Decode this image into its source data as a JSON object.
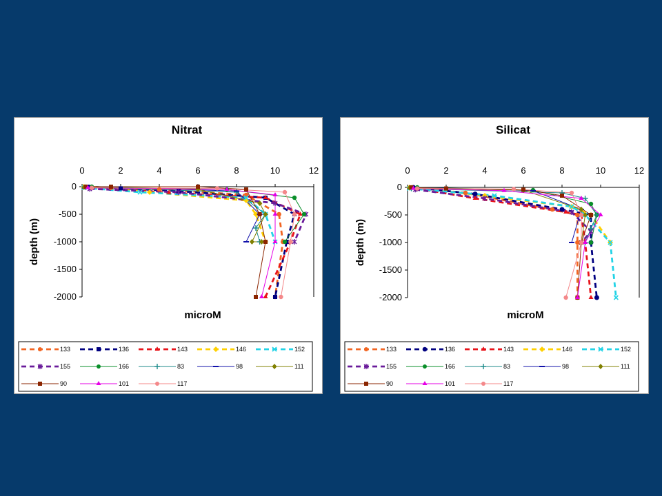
{
  "chart_data": [
    {
      "type": "line",
      "title": "Nitrat",
      "xlabel": "microM",
      "ylabel": "depth (m)",
      "xlim": [
        0,
        12
      ],
      "ylim": [
        -2000,
        0
      ],
      "x_ticks": [
        "0",
        "2",
        "4",
        "6",
        "8",
        "10",
        "12"
      ],
      "y_ticks": [
        "0",
        "-500",
        "-1000",
        "-1500",
        "-2000"
      ],
      "legend_position": "bottom",
      "series": [
        {
          "name": "133",
          "color": "#F26522",
          "dash": "dashed",
          "marker": "circle",
          "points": [
            [
              0.2,
              0
            ],
            [
              1.5,
              -20
            ],
            [
              4,
              -50
            ],
            [
              8.5,
              -150
            ],
            [
              10.2,
              -500
            ],
            [
              10.4,
              -1000
            ],
            [
              10.0,
              -2000
            ]
          ]
        },
        {
          "name": "136",
          "color": "#000080",
          "dash": "dashed",
          "marker": "square",
          "points": [
            [
              0.3,
              0
            ],
            [
              2,
              -30
            ],
            [
              5,
              -80
            ],
            [
              9.5,
              -200
            ],
            [
              11,
              -500
            ],
            [
              10.6,
              -1000
            ],
            [
              10.0,
              -2000
            ]
          ]
        },
        {
          "name": "143",
          "color": "#E8131A",
          "dash": "dashed",
          "marker": "triangle",
          "points": [
            [
              0.5,
              -10
            ],
            [
              4.5,
              -110
            ],
            [
              9.5,
              -200
            ],
            [
              11.3,
              -500
            ],
            [
              10.8,
              -1000
            ],
            [
              9.5,
              -2000
            ]
          ]
        },
        {
          "name": "146",
          "color": "#FFD000",
          "dash": "dashed",
          "marker": "diamond",
          "points": [
            [
              0.1,
              0
            ],
            [
              3.5,
              -100
            ],
            [
              8.5,
              -250
            ],
            [
              9.0,
              -500
            ],
            [
              9.5,
              -1000
            ]
          ]
        },
        {
          "name": "152",
          "color": "#22D3E6",
          "dash": "dashed",
          "marker": "x",
          "points": [
            [
              0.1,
              -20
            ],
            [
              3,
              -100
            ],
            [
              8.5,
              -200
            ],
            [
              9.5,
              -500
            ],
            [
              10,
              -1000
            ]
          ]
        },
        {
          "name": "155",
          "color": "#6A1B9A",
          "dash": "dashed",
          "marker": "star",
          "points": [
            [
              0.4,
              -40
            ],
            [
              5,
              -100
            ],
            [
              10,
              -300
            ],
            [
              11.6,
              -500
            ],
            [
              11,
              -1000
            ]
          ]
        },
        {
          "name": "166",
          "color": "#0A8F2A",
          "dash": "solid",
          "marker": "circle",
          "points": [
            [
              0.5,
              0
            ],
            [
              7.5,
              -50
            ],
            [
              11.0,
              -200
            ],
            [
              11.5,
              -500
            ],
            [
              10.5,
              -1000
            ]
          ]
        },
        {
          "name": "83",
          "color": "#1B8A8A",
          "dash": "solid",
          "marker": "plus",
          "points": [
            [
              0.2,
              -10
            ],
            [
              8,
              -100
            ],
            [
              9.5,
              -500
            ],
            [
              9.0,
              -750
            ],
            [
              9.2,
              -1000
            ]
          ]
        },
        {
          "name": "98",
          "color": "#1111AA",
          "dash": "solid",
          "marker": "dash",
          "points": [
            [
              0.3,
              0
            ],
            [
              8,
              -80
            ],
            [
              9.2,
              -500
            ],
            [
              8.5,
              -1000
            ]
          ]
        },
        {
          "name": "111",
          "color": "#808000",
          "dash": "solid",
          "marker": "diamond",
          "points": [
            [
              0.1,
              -10
            ],
            [
              6,
              -50
            ],
            [
              9.2,
              -300
            ],
            [
              9.5,
              -500
            ],
            [
              8.8,
              -1000
            ],
            [
              9.3,
              -1000
            ]
          ]
        },
        {
          "name": "90",
          "color": "#8B2500",
          "dash": "solid",
          "marker": "square",
          "points": [
            [
              0.2,
              0
            ],
            [
              1.5,
              0
            ],
            [
              6,
              0
            ],
            [
              8.5,
              -50
            ],
            [
              9.2,
              -500
            ],
            [
              9.5,
              -1000
            ],
            [
              9.0,
              -2000
            ]
          ]
        },
        {
          "name": "101",
          "color": "#E600E6",
          "dash": "solid",
          "marker": "triangle",
          "points": [
            [
              0.3,
              -20
            ],
            [
              7.5,
              -50
            ],
            [
              10.0,
              -150
            ],
            [
              10.0,
              -500
            ],
            [
              10.0,
              -1000
            ],
            [
              9.3,
              -2000
            ]
          ]
        },
        {
          "name": "117",
          "color": "#F4888A",
          "dash": "solid",
          "marker": "circle",
          "points": [
            [
              0.5,
              -20
            ],
            [
              7,
              -30
            ],
            [
              10.5,
              -100
            ],
            [
              11,
              -500
            ],
            [
              10.8,
              -1000
            ],
            [
              10.3,
              -2000
            ]
          ]
        }
      ]
    },
    {
      "type": "line",
      "title": "Silicat",
      "xlabel": "microM",
      "ylabel": "depth (m)",
      "xlim": [
        0,
        12
      ],
      "ylim": [
        -2000,
        0
      ],
      "x_ticks": [
        "0",
        "2",
        "4",
        "6",
        "8",
        "10",
        "12"
      ],
      "y_ticks": [
        "0",
        "-500",
        "-1000",
        "-1500",
        "-2000"
      ],
      "legend_position": "bottom",
      "series": [
        {
          "name": "133",
          "color": "#F26522",
          "dash": "dashed",
          "marker": "circle",
          "points": [
            [
              0.2,
              0
            ],
            [
              3,
              -100
            ],
            [
              7.5,
              -400
            ],
            [
              8.8,
              -500
            ],
            [
              8.8,
              -1000
            ],
            [
              8.8,
              -2000
            ]
          ]
        },
        {
          "name": "136",
          "color": "#000080",
          "dash": "dashed",
          "marker": "circle",
          "points": [
            [
              0.3,
              0
            ],
            [
              3.5,
              -120
            ],
            [
              8,
              -400
            ],
            [
              9.5,
              -500
            ],
            [
              9.5,
              -1000
            ],
            [
              9.8,
              -2000
            ]
          ]
        },
        {
          "name": "143",
          "color": "#E8131A",
          "dash": "dashed",
          "marker": "triangle",
          "points": [
            [
              0.5,
              -20
            ],
            [
              3.5,
              -200
            ],
            [
              8.2,
              -450
            ],
            [
              9.0,
              -500
            ],
            [
              9.2,
              -1000
            ],
            [
              9.5,
              -2000
            ]
          ]
        },
        {
          "name": "146",
          "color": "#FFD000",
          "dash": "dashed",
          "marker": "diamond",
          "points": [
            [
              0.1,
              0
            ],
            [
              4,
              -150
            ],
            [
              8.5,
              -350
            ],
            [
              9.5,
              -500
            ],
            [
              10.5,
              -1000
            ]
          ]
        },
        {
          "name": "152",
          "color": "#22D3E6",
          "dash": "dashed",
          "marker": "x",
          "points": [
            [
              0.1,
              -20
            ],
            [
              4.5,
              -150
            ],
            [
              8.5,
              -350
            ],
            [
              9.2,
              -500
            ],
            [
              10.5,
              -1000
            ],
            [
              10.8,
              -2000
            ]
          ]
        },
        {
          "name": "155",
          "color": "#6A1B9A",
          "dash": "dashed",
          "marker": "star",
          "points": [
            [
              0.4,
              -40
            ],
            [
              4,
              -200
            ],
            [
              8.5,
              -450
            ],
            [
              9.5,
              -800
            ],
            [
              9.0,
              -1000
            ]
          ]
        },
        {
          "name": "166",
          "color": "#0A8F2A",
          "dash": "solid",
          "marker": "circle",
          "points": [
            [
              0.5,
              0
            ],
            [
              6.5,
              -50
            ],
            [
              9.5,
              -300
            ],
            [
              9.8,
              -500
            ],
            [
              9.5,
              -1000
            ]
          ]
        },
        {
          "name": "83",
          "color": "#1B8A8A",
          "dash": "solid",
          "marker": "plus",
          "points": [
            [
              0.2,
              -20
            ],
            [
              8,
              -100
            ],
            [
              9.2,
              -200
            ],
            [
              9.8,
              -500
            ],
            [
              9.5,
              -750
            ],
            [
              9.2,
              -1000
            ]
          ]
        },
        {
          "name": "98",
          "color": "#1111AA",
          "dash": "solid",
          "marker": "dash",
          "points": [
            [
              0.3,
              0
            ],
            [
              6.5,
              -60
            ],
            [
              9.0,
              -400
            ],
            [
              8.5,
              -1000
            ]
          ]
        },
        {
          "name": "111",
          "color": "#808000",
          "dash": "solid",
          "marker": "diamond",
          "points": [
            [
              0.1,
              -10
            ],
            [
              6,
              -50
            ],
            [
              9.0,
              -400
            ],
            [
              9.2,
              -500
            ],
            [
              9.0,
              -1000
            ]
          ]
        },
        {
          "name": "90",
          "color": "#8B2500",
          "dash": "solid",
          "marker": "square",
          "points": [
            [
              0.2,
              0
            ],
            [
              2,
              -20
            ],
            [
              6,
              -40
            ],
            [
              8,
              -150
            ],
            [
              9.5,
              -500
            ],
            [
              9.0,
              -1000
            ],
            [
              8.8,
              -2000
            ]
          ]
        },
        {
          "name": "101",
          "color": "#E600E6",
          "dash": "solid",
          "marker": "triangle",
          "points": [
            [
              0.3,
              -20
            ],
            [
              5,
              -60
            ],
            [
              9,
              -200
            ],
            [
              10.0,
              -500
            ],
            [
              9.2,
              -1000
            ],
            [
              8.8,
              -2000
            ]
          ]
        },
        {
          "name": "117",
          "color": "#F4888A",
          "dash": "solid",
          "marker": "circle",
          "points": [
            [
              0.5,
              -20
            ],
            [
              5.5,
              -30
            ],
            [
              8.5,
              -100
            ],
            [
              9.0,
              -500
            ],
            [
              9.0,
              -1000
            ],
            [
              8.2,
              -2000
            ]
          ]
        }
      ]
    }
  ]
}
